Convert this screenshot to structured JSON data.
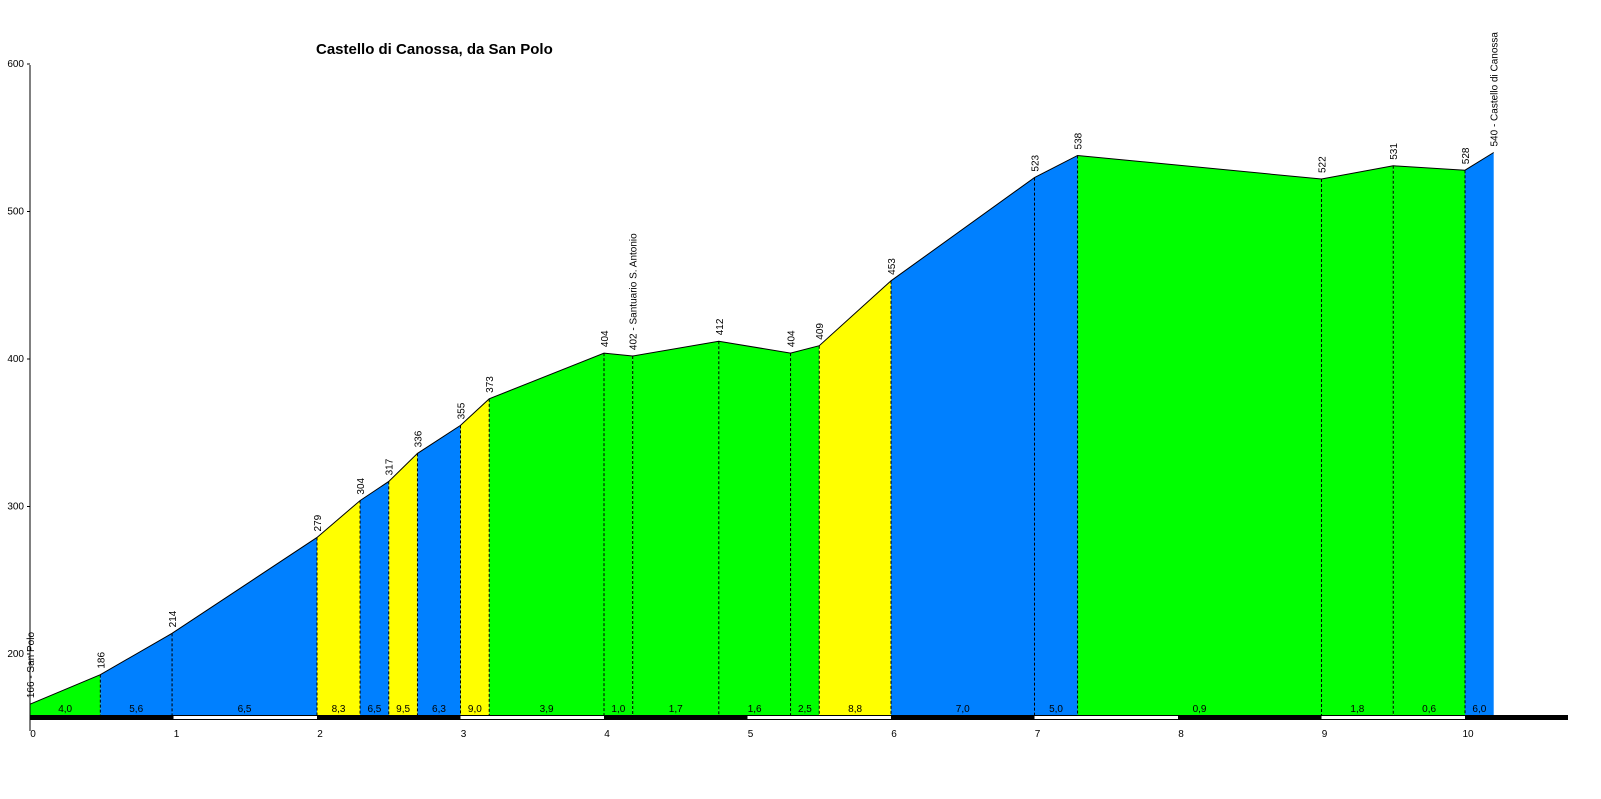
{
  "chart_data": {
    "type": "area",
    "title": "Castello di Canossa, da San Polo",
    "xlabel": "",
    "ylabel": "",
    "xlim": [
      0,
      10.2
    ],
    "ylim": [
      158,
      600
    ],
    "xticks": [
      0,
      1,
      2,
      3,
      4,
      5,
      6,
      7,
      8,
      9,
      10
    ],
    "yticks": [
      200,
      300,
      400,
      500,
      600
    ],
    "grid": false,
    "points": [
      {
        "x": 0.0,
        "y": 166,
        "label": "166 - San Polo"
      },
      {
        "x": 0.49,
        "y": 186,
        "label": "186"
      },
      {
        "x": 0.99,
        "y": 214,
        "label": "214"
      },
      {
        "x": 2.0,
        "y": 279,
        "label": "279"
      },
      {
        "x": 2.3,
        "y": 304,
        "label": "304"
      },
      {
        "x": 2.5,
        "y": 317,
        "label": "317"
      },
      {
        "x": 2.7,
        "y": 336,
        "label": "336"
      },
      {
        "x": 3.0,
        "y": 355,
        "label": "355"
      },
      {
        "x": 3.2,
        "y": 373,
        "label": "373"
      },
      {
        "x": 4.0,
        "y": 404,
        "label": "404"
      },
      {
        "x": 4.2,
        "y": 402,
        "label": "402 - Santuario S. Antonio"
      },
      {
        "x": 4.8,
        "y": 412,
        "label": "412"
      },
      {
        "x": 5.3,
        "y": 404,
        "label": "404"
      },
      {
        "x": 5.5,
        "y": 409,
        "label": "409"
      },
      {
        "x": 6.0,
        "y": 453,
        "label": "453"
      },
      {
        "x": 7.0,
        "y": 523,
        "label": "523"
      },
      {
        "x": 7.3,
        "y": 538,
        "label": "538"
      },
      {
        "x": 9.0,
        "y": 522,
        "label": "522"
      },
      {
        "x": 9.5,
        "y": 531,
        "label": "531"
      },
      {
        "x": 10.0,
        "y": 528,
        "label": "528"
      },
      {
        "x": 10.2,
        "y": 540,
        "label": "540 - Castello di Canossa"
      }
    ],
    "segments": [
      {
        "gradient": "4,0",
        "color": "#00ff00"
      },
      {
        "gradient": "5,6",
        "color": "#0080ff"
      },
      {
        "gradient": "6,5",
        "color": "#0080ff"
      },
      {
        "gradient": "8,3",
        "color": "#ffff00"
      },
      {
        "gradient": "6,5",
        "color": "#0080ff"
      },
      {
        "gradient": "9,5",
        "color": "#ffff00"
      },
      {
        "gradient": "6,3",
        "color": "#0080ff"
      },
      {
        "gradient": "9,0",
        "color": "#ffff00"
      },
      {
        "gradient": "3,9",
        "color": "#00ff00"
      },
      {
        "gradient": "1,0",
        "color": "#00ff00"
      },
      {
        "gradient": "1,7",
        "color": "#00ff00"
      },
      {
        "gradient": "1,6",
        "color": "#00ff00"
      },
      {
        "gradient": "2,5",
        "color": "#00ff00"
      },
      {
        "gradient": "8,8",
        "color": "#ffff00"
      },
      {
        "gradient": "7,0",
        "color": "#0080ff"
      },
      {
        "gradient": "5,0",
        "color": "#0080ff"
      },
      {
        "gradient": "0,9",
        "color": "#00ff00"
      },
      {
        "gradient": "1,8",
        "color": "#00ff00"
      },
      {
        "gradient": "0,6",
        "color": "#00ff00"
      },
      {
        "gradient": "6,0",
        "color": "#0080ff"
      }
    ]
  }
}
